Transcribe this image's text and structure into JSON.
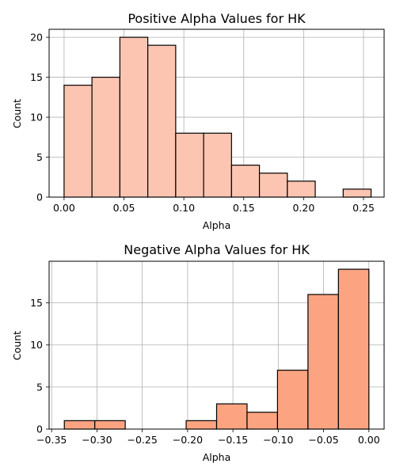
{
  "chart_data": [
    {
      "type": "bar",
      "title": "Positive Alpha Values for HK",
      "xlabel": "Alpha",
      "ylabel": "Count",
      "xlim": [
        -0.0125,
        0.2672
      ],
      "ylim": [
        0,
        21
      ],
      "xticks": [
        0.0,
        0.05,
        0.1,
        0.15,
        0.2,
        0.25
      ],
      "xtick_labels": [
        "0.00",
        "0.05",
        "0.10",
        "0.15",
        "0.20",
        "0.25"
      ],
      "yticks": [
        0,
        5,
        10,
        15,
        20
      ],
      "ytick_labels": [
        "0",
        "5",
        "10",
        "15",
        "20"
      ],
      "grid": true,
      "bar_color": "#fcc5b2",
      "bins": [
        {
          "x0": 0.0,
          "x1": 0.0233,
          "count": 14
        },
        {
          "x0": 0.0233,
          "x1": 0.0466,
          "count": 15
        },
        {
          "x0": 0.0466,
          "x1": 0.0699,
          "count": 20
        },
        {
          "x0": 0.0699,
          "x1": 0.0932,
          "count": 19
        },
        {
          "x0": 0.0932,
          "x1": 0.1165,
          "count": 8
        },
        {
          "x0": 0.1165,
          "x1": 0.1398,
          "count": 8
        },
        {
          "x0": 0.1398,
          "x1": 0.1631,
          "count": 4
        },
        {
          "x0": 0.1631,
          "x1": 0.1864,
          "count": 3
        },
        {
          "x0": 0.1864,
          "x1": 0.2097,
          "count": 2
        },
        {
          "x0": 0.2097,
          "x1": 0.233,
          "count": 0
        },
        {
          "x0": 0.233,
          "x1": 0.2563,
          "count": 1
        }
      ]
    },
    {
      "type": "bar",
      "title": "Negative Alpha Values for HK",
      "xlabel": "Alpha",
      "ylabel": "Count",
      "xlim": [
        -0.3528,
        0.0168
      ],
      "ylim": [
        0,
        19.95
      ],
      "xticks": [
        -0.35,
        -0.3,
        -0.25,
        -0.2,
        -0.15,
        -0.1,
        -0.05,
        0.0
      ],
      "xtick_labels": [
        "−0.35",
        "−0.30",
        "−0.25",
        "−0.20",
        "−0.15",
        "−0.10",
        "−0.05",
        "0.00"
      ],
      "yticks": [
        0,
        5,
        10,
        15
      ],
      "ytick_labels": [
        "0",
        "5",
        "10",
        "15"
      ],
      "grid": true,
      "bar_color": "#fca482",
      "bins": [
        {
          "x0": -0.336,
          "x1": -0.3024,
          "count": 1
        },
        {
          "x0": -0.3024,
          "x1": -0.2688,
          "count": 1
        },
        {
          "x0": -0.2688,
          "x1": -0.2352,
          "count": 0
        },
        {
          "x0": -0.2352,
          "x1": -0.2016,
          "count": 0
        },
        {
          "x0": -0.2016,
          "x1": -0.168,
          "count": 1
        },
        {
          "x0": -0.168,
          "x1": -0.1344,
          "count": 3
        },
        {
          "x0": -0.1344,
          "x1": -0.1008,
          "count": 2
        },
        {
          "x0": -0.1008,
          "x1": -0.0672,
          "count": 7
        },
        {
          "x0": -0.0672,
          "x1": -0.0336,
          "count": 16
        },
        {
          "x0": -0.0336,
          "x1": 0.0,
          "count": 19
        }
      ]
    }
  ]
}
